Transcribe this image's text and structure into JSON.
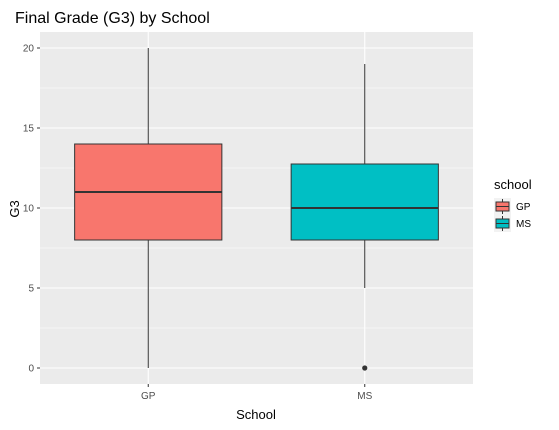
{
  "chart_data": {
    "type": "boxplot",
    "title": "Final Grade (G3) by School",
    "xlabel": "School",
    "ylabel": "G3",
    "categories": [
      "GP",
      "MS"
    ],
    "ylim": [
      0,
      20
    ],
    "yticks": [
      0,
      5,
      10,
      15,
      20
    ],
    "grid": true,
    "legend": {
      "title": "school",
      "placement": "right",
      "entries": [
        "GP",
        "MS"
      ]
    },
    "series": [
      {
        "category": "GP",
        "min": 0,
        "q1": 8,
        "median": 11,
        "q3": 14,
        "max": 20,
        "outliers": [],
        "color": "#F8766D"
      },
      {
        "category": "MS",
        "min": 5,
        "q1": 8,
        "median": 10,
        "q3": 12.75,
        "max": 19,
        "outliers": [
          0
        ],
        "color": "#00BFC4"
      }
    ]
  },
  "colors": {
    "panel": "#EBEBEB",
    "grid_major": "#FFFFFF",
    "outline": "#333333"
  }
}
